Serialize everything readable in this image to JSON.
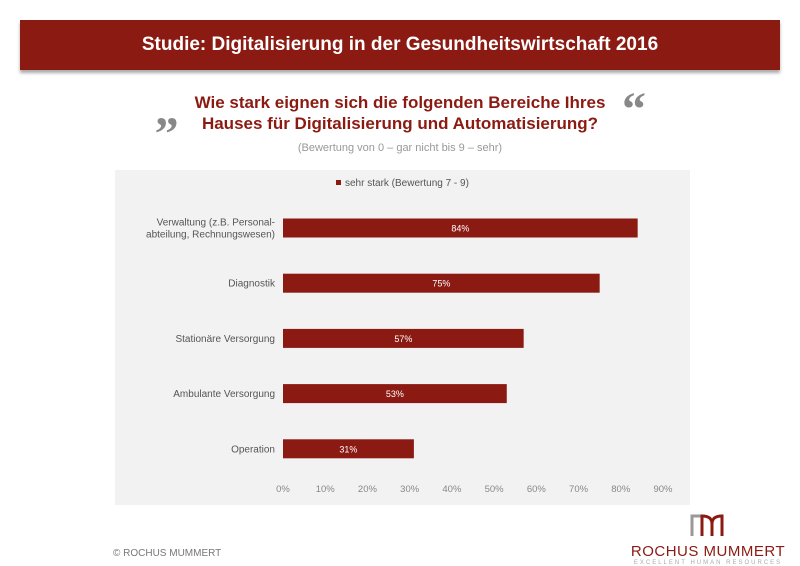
{
  "header": {
    "title": "Studie:  Digitalisierung in der Gesundheitswirtschaft 2016"
  },
  "question": {
    "open_quote": "„",
    "close_quote": "“",
    "line1": "Wie stark eignen sich die folgenden Bereiche Ihres",
    "line2": "Hauses für Digitalisierung und Automatisierung?",
    "scale": "(Bewertung von 0 – gar nicht bis 9 – sehr)"
  },
  "footer": {
    "copyright": "© ROCHUS  MUMMERT",
    "logo_name": "ROCHUS MUMMERT",
    "logo_tagline": "EXCELLENT HUMAN RESOURCES"
  },
  "colors": {
    "bar": "#8b1a12",
    "header": "#8b1a12",
    "panel": "#f2f2f2"
  },
  "chart_data": {
    "type": "bar",
    "orientation": "horizontal",
    "categories": [
      "Verwaltung (z.B. Personal-\nabteilung, Rechnungswesen)",
      "Diagnostik",
      "Stationäre Versorgung",
      "Ambulante Versorgung",
      "Operation"
    ],
    "series": [
      {
        "name": "sehr stark (Bewertung 7 - 9)",
        "values": [
          84,
          75,
          57,
          53,
          31
        ]
      }
    ],
    "data_labels": [
      "84%",
      "75%",
      "57%",
      "53%",
      "31%"
    ],
    "xlim": [
      0,
      90
    ],
    "xticks": [
      "0%",
      "10%",
      "20%",
      "30%",
      "40%",
      "50%",
      "60%",
      "70%",
      "80%",
      "90%"
    ],
    "legend_position": "top",
    "grid": false
  }
}
